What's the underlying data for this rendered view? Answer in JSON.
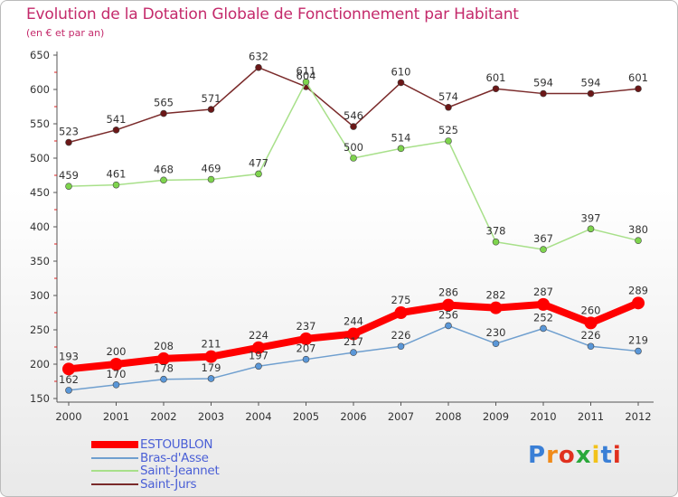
{
  "title": "Evolution de la Dotation Globale de Fonctionnement par Habitant",
  "subtitle": "(en € et par an)",
  "logo_text": "Proxiti",
  "chart_data": {
    "type": "line",
    "x": [
      "2000",
      "2001",
      "2002",
      "2003",
      "2004",
      "2005",
      "2006",
      "2007",
      "2008",
      "2009",
      "2010",
      "2011",
      "2012"
    ],
    "ylim": [
      150,
      650
    ],
    "yticks": [
      150,
      200,
      250,
      300,
      350,
      400,
      450,
      500,
      550,
      600,
      650
    ],
    "grid": false,
    "legend_position": "bottom-left",
    "series": [
      {
        "name": "ESTOUBLON",
        "color": "#ff0000",
        "marker_color": "#ff0000",
        "width": 8,
        "marker": 7,
        "values": [
          193,
          200,
          208,
          211,
          224,
          237,
          244,
          275,
          286,
          282,
          287,
          260,
          289
        ]
      },
      {
        "name": "Bras-d'Asse",
        "color": "#6f9fcf",
        "marker_color": "#5a97d8",
        "width": 1.5,
        "marker": 3.5,
        "values": [
          162,
          170,
          178,
          179,
          197,
          207,
          217,
          226,
          256,
          230,
          252,
          226,
          219
        ]
      },
      {
        "name": "Saint-Jeannet",
        "color": "#a8e08a",
        "marker_color": "#7ed44d",
        "width": 1.5,
        "marker": 3.5,
        "values": [
          459,
          461,
          468,
          469,
          477,
          611,
          500,
          514,
          525,
          378,
          367,
          397,
          380
        ]
      },
      {
        "name": "Saint-Jurs",
        "color": "#7a2a2a",
        "marker_color": "#6b1717",
        "width": 1.5,
        "marker": 3.5,
        "values": [
          523,
          541,
          565,
          571,
          632,
          604,
          546,
          610,
          574,
          601,
          594,
          594,
          601
        ]
      }
    ]
  }
}
